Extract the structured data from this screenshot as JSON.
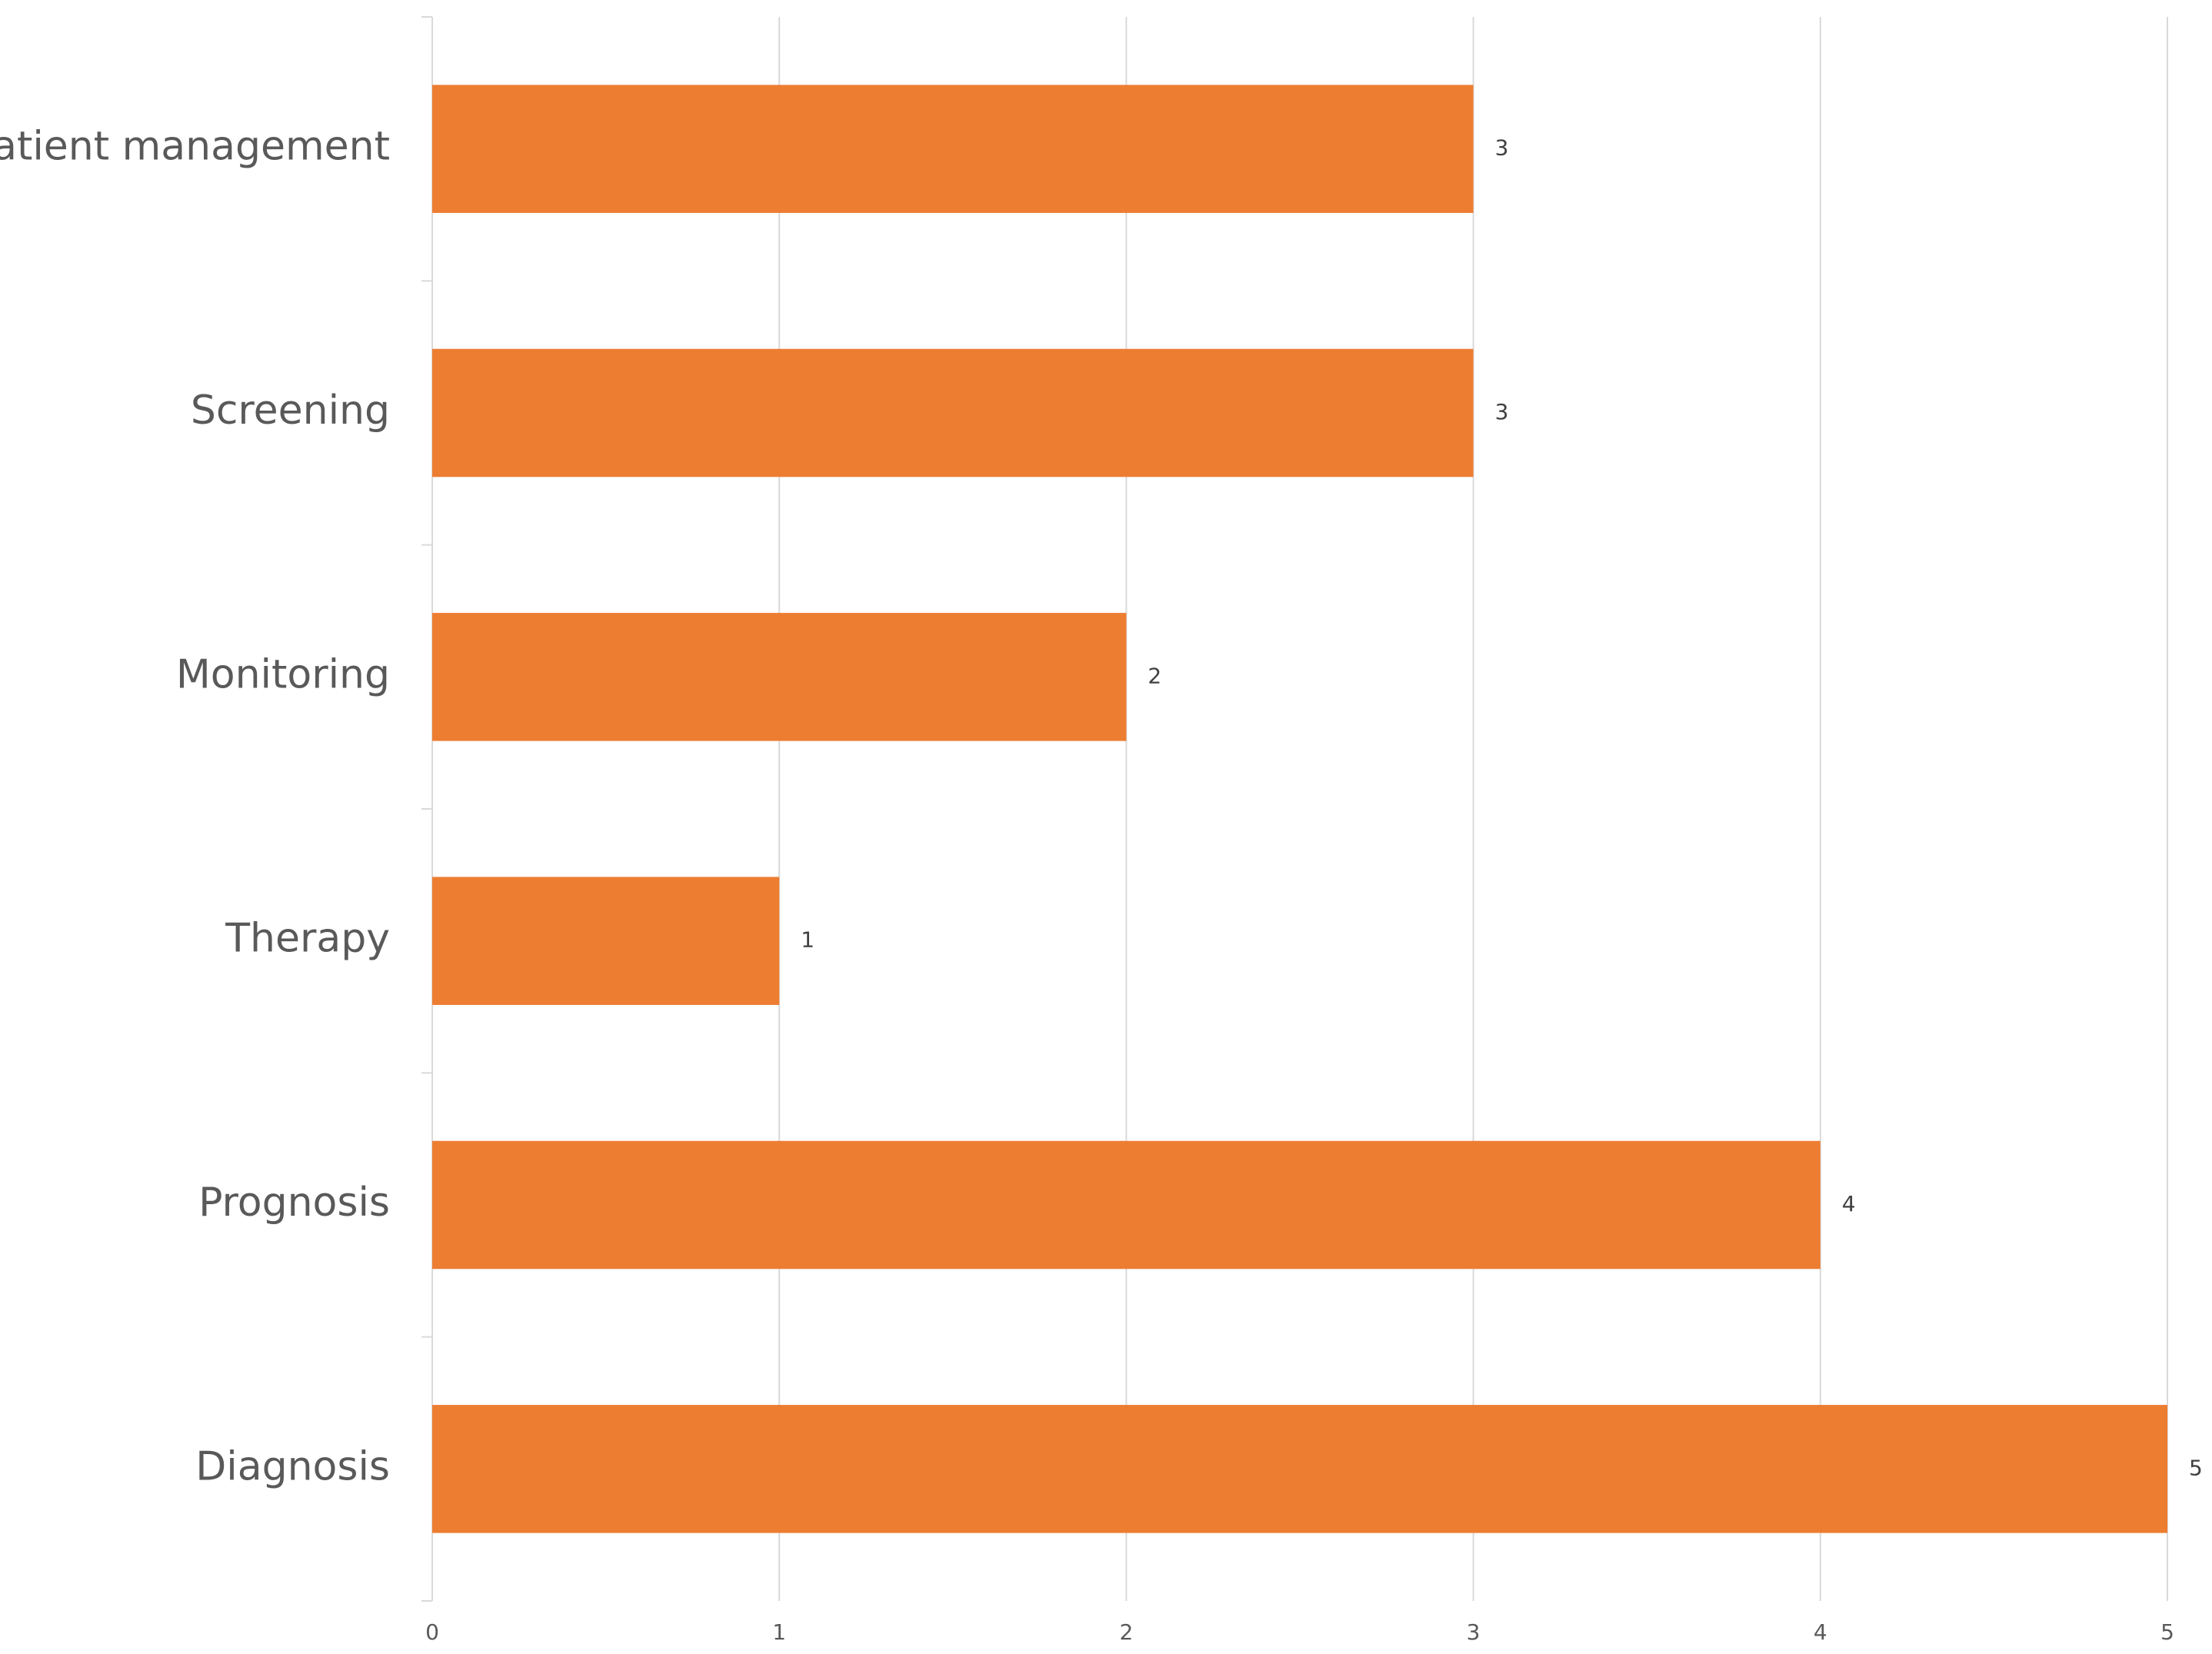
{
  "chart_data": {
    "type": "bar",
    "orientation": "horizontal",
    "categories": [
      "Patient management",
      "Screening",
      "Monitoring",
      "Therapy",
      "Prognosis",
      "Diagnosis"
    ],
    "values": [
      3,
      3,
      2,
      1,
      4,
      5
    ],
    "data_labels": [
      "3",
      "3",
      "2",
      "1",
      "4",
      "5"
    ],
    "title": "",
    "xlabel": "",
    "ylabel": "",
    "xlim": [
      0,
      5
    ],
    "x_ticks": [
      0,
      1,
      2,
      3,
      4,
      5
    ],
    "x_tick_labels": [
      "0",
      "1",
      "2",
      "3",
      "4",
      "5"
    ],
    "grid": "vertical",
    "legend": "none",
    "colors": {
      "bar": "#ED7D31",
      "grid": "#D9D9D9",
      "axis": "#D9D9D9",
      "text": "#595959",
      "data_label": "#404040"
    }
  }
}
